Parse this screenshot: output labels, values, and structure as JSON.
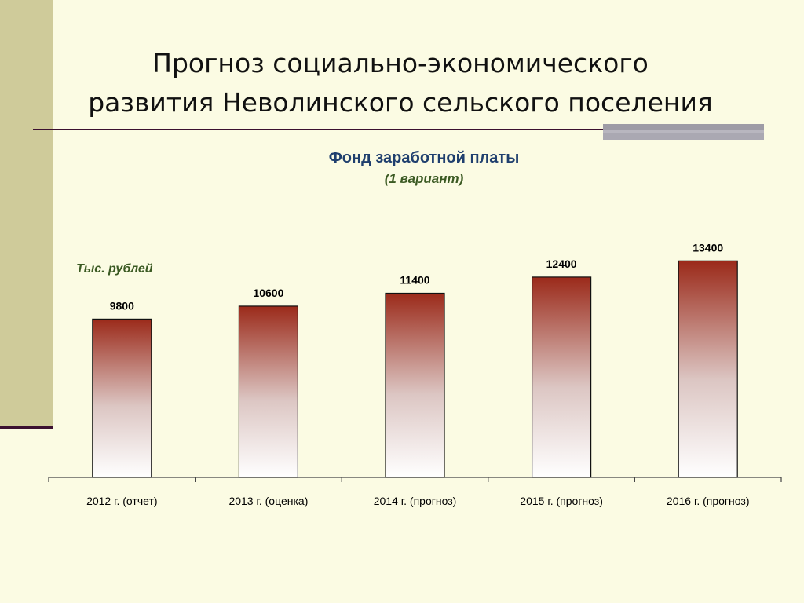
{
  "slide": {
    "title_line1": "Прогноз социально-экономического",
    "title_line2": "развития Неволинского сельского поселения"
  },
  "chart_data": {
    "type": "bar",
    "title": "Фонд заработной платы",
    "subtitle": "(1 вариант)",
    "ylabel": "Тыс. рублей",
    "xlabel": "",
    "categories": [
      "2012 г. (отчет)",
      "2013 г. (оценка)",
      "2014 г. (прогноз)",
      "2015 г. (прогноз)",
      "2016 г. (прогноз)"
    ],
    "values": [
      9800,
      10600,
      11400,
      12400,
      13400
    ],
    "data_labels": [
      "9800",
      "10600",
      "11400",
      "12400",
      "13400"
    ],
    "ylim": [
      0,
      14000
    ],
    "grid": false,
    "legend": "none",
    "colors": {
      "bar_top": "#9b2a1a",
      "bar_bottom": "#ffffff",
      "bar_stroke": "#111111"
    }
  }
}
